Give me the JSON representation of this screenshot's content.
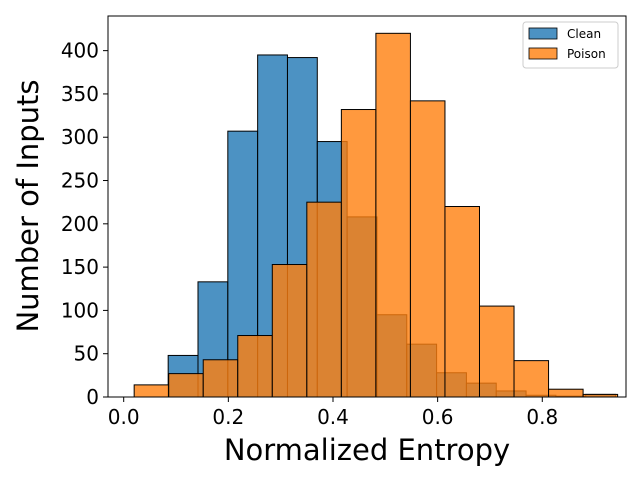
{
  "chart_data": {
    "type": "bar",
    "subtype": "overlapping-histogram",
    "title": "",
    "xlabel": "Normalized Entropy",
    "ylabel": "Number of Inputs",
    "xlim": [
      -0.03,
      0.96
    ],
    "ylim": [
      0,
      440
    ],
    "x_ticks": [
      0.0,
      0.2,
      0.4,
      0.6,
      0.8
    ],
    "x_tick_labels": [
      "0.0",
      "0.2",
      "0.4",
      "0.6",
      "0.8"
    ],
    "y_ticks": [
      0,
      50,
      100,
      150,
      200,
      250,
      300,
      350,
      400
    ],
    "y_tick_labels": [
      "0",
      "50",
      "100",
      "150",
      "200",
      "250",
      "300",
      "350",
      "400"
    ],
    "grid": false,
    "legend_position": "top-right",
    "series": [
      {
        "name": "Clean",
        "color": "#1f77b4",
        "bins": [
          {
            "x0": 0.085,
            "x1": 0.142,
            "count": 48
          },
          {
            "x0": 0.142,
            "x1": 0.199,
            "count": 133
          },
          {
            "x0": 0.199,
            "x1": 0.256,
            "count": 307
          },
          {
            "x0": 0.256,
            "x1": 0.313,
            "count": 395
          },
          {
            "x0": 0.313,
            "x1": 0.37,
            "count": 392
          },
          {
            "x0": 0.37,
            "x1": 0.427,
            "count": 295
          },
          {
            "x0": 0.427,
            "x1": 0.484,
            "count": 208
          },
          {
            "x0": 0.484,
            "x1": 0.541,
            "count": 95
          },
          {
            "x0": 0.541,
            "x1": 0.598,
            "count": 61
          },
          {
            "x0": 0.598,
            "x1": 0.655,
            "count": 28
          },
          {
            "x0": 0.655,
            "x1": 0.712,
            "count": 16
          },
          {
            "x0": 0.712,
            "x1": 0.769,
            "count": 7
          },
          {
            "x0": 0.769,
            "x1": 0.826,
            "count": 2
          },
          {
            "x0": 0.826,
            "x1": 0.883,
            "count": 1
          },
          {
            "x0": 0.883,
            "x1": 0.94,
            "count": 3
          }
        ]
      },
      {
        "name": "Poison",
        "color": "#ff7f0e",
        "bins": [
          {
            "x0": 0.02,
            "x1": 0.086,
            "count": 14
          },
          {
            "x0": 0.086,
            "x1": 0.152,
            "count": 27
          },
          {
            "x0": 0.152,
            "x1": 0.218,
            "count": 43
          },
          {
            "x0": 0.218,
            "x1": 0.284,
            "count": 71
          },
          {
            "x0": 0.284,
            "x1": 0.35,
            "count": 153
          },
          {
            "x0": 0.35,
            "x1": 0.416,
            "count": 225
          },
          {
            "x0": 0.416,
            "x1": 0.482,
            "count": 332
          },
          {
            "x0": 0.482,
            "x1": 0.548,
            "count": 420
          },
          {
            "x0": 0.548,
            "x1": 0.614,
            "count": 342
          },
          {
            "x0": 0.614,
            "x1": 0.68,
            "count": 220
          },
          {
            "x0": 0.68,
            "x1": 0.746,
            "count": 105
          },
          {
            "x0": 0.746,
            "x1": 0.812,
            "count": 42
          },
          {
            "x0": 0.812,
            "x1": 0.878,
            "count": 9
          },
          {
            "x0": 0.878,
            "x1": 0.944,
            "count": 3
          }
        ]
      }
    ]
  }
}
